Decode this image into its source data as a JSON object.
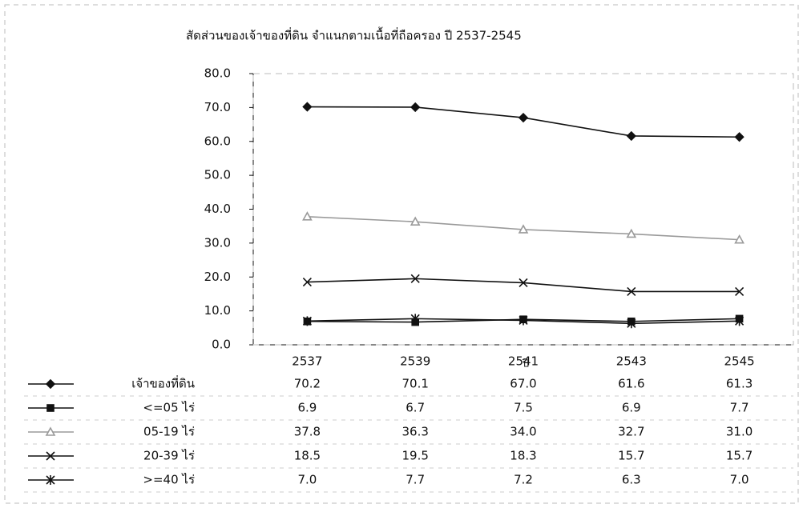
{
  "chart_data": {
    "type": "line",
    "title": "สัดส่วนของเจ้าของที่ดิน จำแนกตามเนื้อที่ถือครอง ปี 2537-2545",
    "x_label": "ปี",
    "categories": [
      "2537",
      "2539",
      "2541",
      "2543",
      "2545"
    ],
    "ylim": [
      0,
      80
    ],
    "yticks": [
      {
        "value": 0,
        "label": "0.0"
      },
      {
        "value": 10,
        "label": "10.0"
      },
      {
        "value": 20,
        "label": "20.0"
      },
      {
        "value": 30,
        "label": "30.0"
      },
      {
        "value": 40,
        "label": "40.0"
      },
      {
        "value": 50,
        "label": "50.0"
      },
      {
        "value": 60,
        "label": "60.0"
      },
      {
        "value": 70,
        "label": "70.0"
      },
      {
        "value": 80,
        "label": "80.0"
      }
    ],
    "series": [
      {
        "name": "เจ้าของที่ดิน",
        "color": "#111111",
        "marker": "diamond",
        "values": [
          70.2,
          70.1,
          67,
          61.6,
          61.3
        ],
        "value_labels": [
          "70.2",
          "70.1",
          "67.0",
          "61.6",
          "61.3"
        ]
      },
      {
        "name": "<=05  ไร่",
        "color": "#111111",
        "marker": "square",
        "values": [
          6.9,
          6.7,
          7.5,
          6.9,
          7.7
        ],
        "value_labels": [
          "6.9",
          "6.7",
          "7.5",
          "6.9",
          "7.7"
        ]
      },
      {
        "name": "05-19  ไร่",
        "color": "#9a9a9a",
        "marker": "triangle",
        "values": [
          37.8,
          36.3,
          34,
          32.7,
          31
        ],
        "value_labels": [
          "37.8",
          "36.3",
          "34.0",
          "32.7",
          "31.0"
        ]
      },
      {
        "name": "20-39  ไร่",
        "color": "#111111",
        "marker": "x",
        "values": [
          18.5,
          19.5,
          18.3,
          15.7,
          15.7
        ],
        "value_labels": [
          "18.5",
          "19.5",
          "18.3",
          "15.7",
          "15.7"
        ]
      },
      {
        "name": ">=40  ไร่",
        "color": "#111111",
        "marker": "star",
        "values": [
          7,
          7.7,
          7.2,
          6.3,
          7
        ],
        "value_labels": [
          "7.0",
          "7.7",
          "7.2",
          "6.3",
          "7.0"
        ]
      }
    ]
  }
}
